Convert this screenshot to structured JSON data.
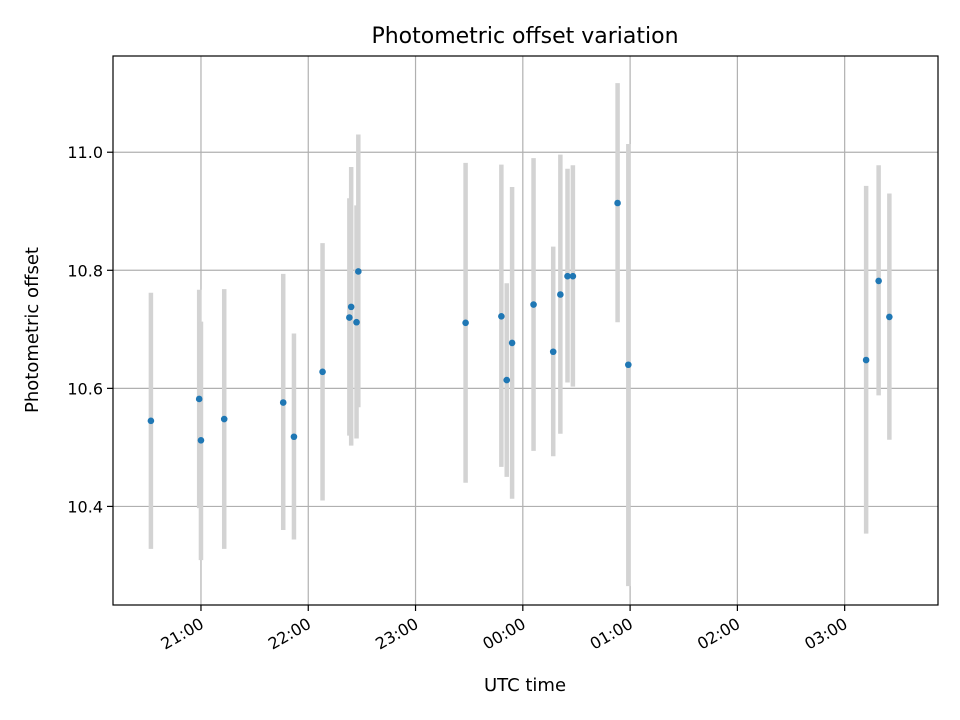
{
  "chart_data": {
    "type": "scatter",
    "title": "Photometric offset variation",
    "xlabel": "UTC time",
    "ylabel": "Photometric offset",
    "grid": true,
    "x_ticks": [
      "21:00",
      "22:00",
      "23:00",
      "00:00",
      "01:00",
      "02:00",
      "03:00"
    ],
    "y_ticks": [
      "10.4",
      "10.6",
      "10.8",
      "11.0"
    ],
    "xlim_hours": [
      20.18,
      27.87
    ],
    "ylim": [
      10.233,
      11.163
    ],
    "colors": {
      "point": "#1f77b4",
      "errorbar": "#d3d3d3",
      "grid": "#b0b0b0",
      "axis": "#000000"
    },
    "x_tick_hours": [
      21,
      22,
      23,
      24,
      25,
      26,
      27
    ],
    "series": [
      {
        "points": [
          {
            "t": "20:32",
            "y": 10.545,
            "lo": 10.328,
            "hi": 10.762
          },
          {
            "t": "20:59",
            "y": 10.582,
            "lo": 10.397,
            "hi": 10.767
          },
          {
            "t": "21:00",
            "y": 10.512,
            "lo": 10.309,
            "hi": 10.713
          },
          {
            "t": "21:13",
            "y": 10.548,
            "lo": 10.328,
            "hi": 10.768
          },
          {
            "t": "21:46",
            "y": 10.576,
            "lo": 10.36,
            "hi": 10.794
          },
          {
            "t": "21:52",
            "y": 10.518,
            "lo": 10.344,
            "hi": 10.693
          },
          {
            "t": "22:08",
            "y": 10.628,
            "lo": 10.41,
            "hi": 10.846
          },
          {
            "t": "22:23",
            "y": 10.72,
            "lo": 10.52,
            "hi": 10.922
          },
          {
            "t": "22:24",
            "y": 10.738,
            "lo": 10.503,
            "hi": 10.975
          },
          {
            "t": "22:27",
            "y": 10.712,
            "lo": 10.515,
            "hi": 10.91
          },
          {
            "t": "22:28",
            "y": 10.798,
            "lo": 10.568,
            "hi": 11.03
          },
          {
            "t": "23:28",
            "y": 10.711,
            "lo": 10.44,
            "hi": 10.982
          },
          {
            "t": "23:48",
            "y": 10.722,
            "lo": 10.467,
            "hi": 10.979
          },
          {
            "t": "23:51",
            "y": 10.614,
            "lo": 10.45,
            "hi": 10.778
          },
          {
            "t": "23:54",
            "y": 10.677,
            "lo": 10.413,
            "hi": 10.941
          },
          {
            "t": "00:06",
            "y": 10.742,
            "lo": 10.494,
            "hi": 10.99
          },
          {
            "t": "00:17",
            "y": 10.662,
            "lo": 10.485,
            "hi": 10.84
          },
          {
            "t": "00:21",
            "y": 10.759,
            "lo": 10.523,
            "hi": 10.996
          },
          {
            "t": "00:25",
            "y": 10.79,
            "lo": 10.61,
            "hi": 10.972
          },
          {
            "t": "00:28",
            "y": 10.79,
            "lo": 10.603,
            "hi": 10.978
          },
          {
            "t": "00:53",
            "y": 10.914,
            "lo": 10.712,
            "hi": 11.117
          },
          {
            "t": "00:59",
            "y": 10.64,
            "lo": 10.265,
            "hi": 11.014
          },
          {
            "t": "03:12",
            "y": 10.648,
            "lo": 10.354,
            "hi": 10.943
          },
          {
            "t": "03:19",
            "y": 10.782,
            "lo": 10.588,
            "hi": 10.978
          },
          {
            "t": "03:25",
            "y": 10.721,
            "lo": 10.513,
            "hi": 10.93
          }
        ]
      }
    ]
  }
}
